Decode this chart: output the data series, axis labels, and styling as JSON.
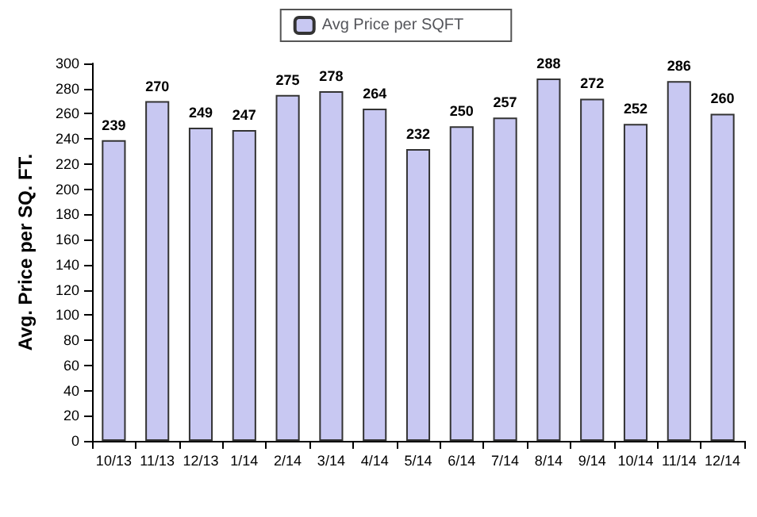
{
  "chart_data": {
    "type": "bar",
    "ylabel": "Avg. Price per SQ. FT.",
    "categories": [
      "10/13",
      "11/13",
      "12/13",
      "1/14",
      "2/14",
      "3/14",
      "4/14",
      "5/14",
      "6/14",
      "7/14",
      "8/14",
      "9/14",
      "10/14",
      "11/14",
      "12/14"
    ],
    "series": [
      {
        "name": "Avg Price per SQFT",
        "color": "#c8c8f2",
        "values": [
          239,
          270,
          249,
          247,
          275,
          278,
          264,
          232,
          250,
          257,
          288,
          272,
          252,
          286,
          260
        ]
      }
    ],
    "ylim": [
      0,
      300
    ],
    "yticks": [
      0,
      20,
      40,
      60,
      80,
      100,
      120,
      140,
      160,
      180,
      200,
      220,
      240,
      260,
      280,
      300
    ],
    "data_labels": true,
    "legend": "top",
    "grid": false
  }
}
